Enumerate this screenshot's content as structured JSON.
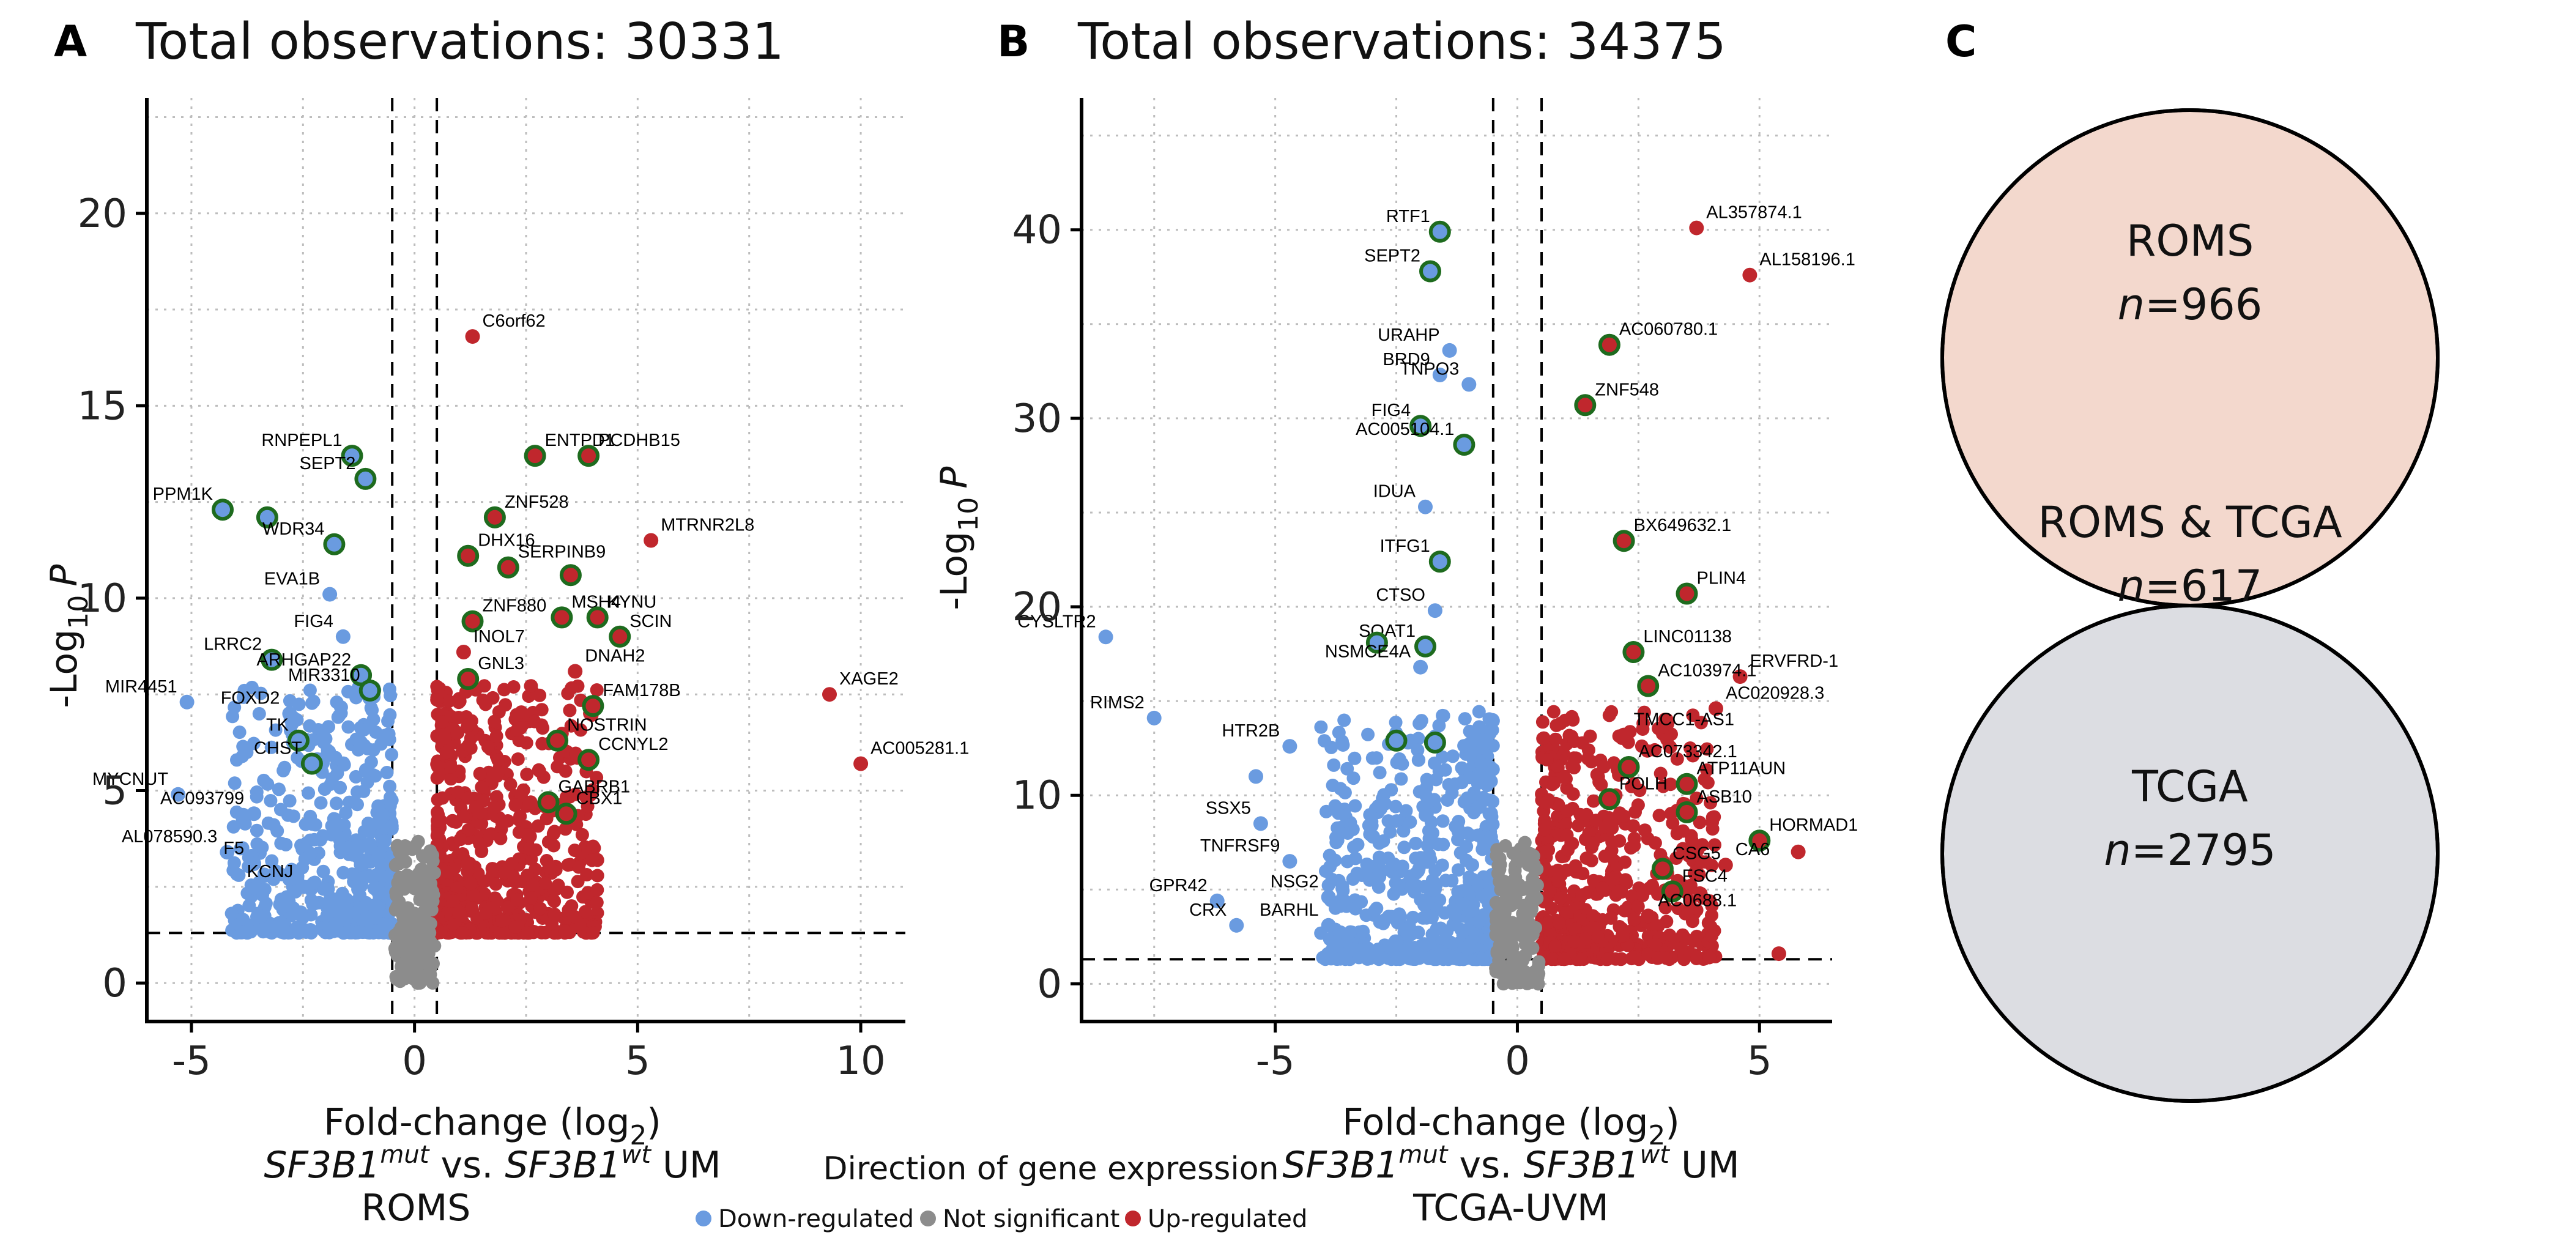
{
  "colors": {
    "down": "#6a9be0",
    "ns": "#8c8c8c",
    "up": "#c0272d",
    "highlight_ring": "#1e6b1e",
    "venn_roms": "#f3d8cd",
    "venn_tcga": "#dcdde2",
    "venn_overlap": "#bfe2b5"
  },
  "panels": {
    "a": {
      "letter": "A"
    },
    "b": {
      "letter": "B"
    },
    "c": {
      "letter": "C"
    }
  },
  "chart_data": [
    {
      "type": "scatter",
      "panel": "A",
      "title": "Total observations: 30331",
      "xlabel_line1": "Fold-change (log",
      "xlabel_sub": "2",
      "xlabel_line1_end": ")",
      "xlabel_line2": {
        "gene1": "SF3B1",
        "sup1": "mut",
        "mid": " vs. ",
        "gene2": "SF3B1",
        "sup2": "wt",
        "end": " UM"
      },
      "xlabel_line3": "ROMS",
      "ylabel": {
        "pre": "-Log",
        "sub": "10",
        "post": "P"
      },
      "xlim": [
        -6,
        11
      ],
      "ylim": [
        -1,
        23
      ],
      "xticks": [
        -5,
        0,
        5,
        10
      ],
      "xtick_labels": [
        "-5",
        "0",
        "5",
        "10"
      ],
      "yticks": [
        0,
        5,
        10,
        15,
        20
      ],
      "ytick_labels": [
        "0",
        "5",
        "10",
        "15",
        "20"
      ],
      "fc_cutoff": 0.5,
      "p_cutoff": 1.3,
      "cluster_seed": 11,
      "cluster": {
        "down": 520,
        "up": 620,
        "ns": 160
      },
      "labeled_points": [
        {
          "x": 1.3,
          "y": 16.8,
          "g": "up",
          "label": "C6orf62",
          "hl": false
        },
        {
          "x": -1.4,
          "y": 13.7,
          "g": "down",
          "label": "RNPEPL1",
          "hl": true
        },
        {
          "x": -1.1,
          "y": 13.1,
          "g": "down",
          "label": "SEPT2",
          "hl": true
        },
        {
          "x": 2.7,
          "y": 13.7,
          "g": "up",
          "label": "ENTPD1",
          "hl": true
        },
        {
          "x": 3.9,
          "y": 13.7,
          "g": "up",
          "label": "PCDHB15",
          "hl": true
        },
        {
          "x": -4.3,
          "y": 12.3,
          "g": "down",
          "label": "PPM1K",
          "hl": true
        },
        {
          "x": -3.3,
          "y": 12.1,
          "g": "down",
          "label": "",
          "hl": true
        },
        {
          "x": 1.8,
          "y": 12.1,
          "g": "up",
          "label": "ZNF528",
          "hl": true
        },
        {
          "x": 5.3,
          "y": 11.5,
          "g": "up",
          "label": "MTRNR2L8",
          "hl": false
        },
        {
          "x": -1.8,
          "y": 11.4,
          "g": "down",
          "label": "WDR34",
          "hl": true
        },
        {
          "x": 1.2,
          "y": 11.1,
          "g": "up",
          "label": "DHX16",
          "hl": true
        },
        {
          "x": 2.1,
          "y": 10.8,
          "g": "up",
          "label": "SERPINB9",
          "hl": true
        },
        {
          "x": 3.5,
          "y": 10.6,
          "g": "up",
          "label": "",
          "hl": true
        },
        {
          "x": -1.9,
          "y": 10.1,
          "g": "down",
          "label": "EVA1B",
          "hl": false
        },
        {
          "x": 1.3,
          "y": 9.4,
          "g": "up",
          "label": "ZNF880",
          "hl": true
        },
        {
          "x": 3.3,
          "y": 9.5,
          "g": "up",
          "label": "MSH4",
          "hl": true
        },
        {
          "x": 4.1,
          "y": 9.5,
          "g": "up",
          "label": "KYNU",
          "hl": true
        },
        {
          "x": -1.6,
          "y": 9.0,
          "g": "down",
          "label": "FIG4",
          "hl": false
        },
        {
          "x": 1.1,
          "y": 8.6,
          "g": "up",
          "label": "INOL7",
          "hl": false
        },
        {
          "x": 4.6,
          "y": 9.0,
          "g": "up",
          "label": "SCIN",
          "hl": true
        },
        {
          "x": -3.2,
          "y": 8.4,
          "g": "down",
          "label": "LRRC2",
          "hl": true
        },
        {
          "x": -1.2,
          "y": 8.0,
          "g": "down",
          "label": "ARHGAP22",
          "hl": true
        },
        {
          "x": 1.2,
          "y": 7.9,
          "g": "up",
          "label": "GNL3",
          "hl": true
        },
        {
          "x": 3.6,
          "y": 8.1,
          "g": "up",
          "label": "DNAH2",
          "hl": false
        },
        {
          "x": -5.1,
          "y": 7.3,
          "g": "down",
          "label": "MIR4451",
          "hl": false
        },
        {
          "x": -1.0,
          "y": 7.6,
          "g": "down",
          "label": "MIR3310",
          "hl": true
        },
        {
          "x": 4.0,
          "y": 7.2,
          "g": "up",
          "label": "FAM178B",
          "hl": true
        },
        {
          "x": -2.8,
          "y": 7.0,
          "g": "down",
          "label": "FOXD2",
          "hl": false
        },
        {
          "x": -2.6,
          "y": 6.3,
          "g": "down",
          "label": "TK",
          "hl": true
        },
        {
          "x": 3.2,
          "y": 6.3,
          "g": "up",
          "label": "NOSTRIN",
          "hl": true
        },
        {
          "x": -2.3,
          "y": 5.7,
          "g": "down",
          "label": "CHST",
          "hl": true
        },
        {
          "x": 3.9,
          "y": 5.8,
          "g": "up",
          "label": "CCNYL2",
          "hl": true
        },
        {
          "x": -5.3,
          "y": 4.9,
          "g": "down",
          "label": "MYCNUT",
          "hl": false
        },
        {
          "x": 3.0,
          "y": 4.7,
          "g": "up",
          "label": "GABRB1",
          "hl": true
        },
        {
          "x": -3.6,
          "y": 4.4,
          "g": "down",
          "label": "AC093799",
          "hl": false
        },
        {
          "x": 3.4,
          "y": 4.4,
          "g": "up",
          "label": "CBX1",
          "hl": true
        },
        {
          "x": -4.2,
          "y": 3.4,
          "g": "down",
          "label": "AL078590.3",
          "hl": false
        },
        {
          "x": -3.6,
          "y": 3.1,
          "g": "down",
          "label": "F5",
          "hl": false
        },
        {
          "x": -2.5,
          "y": 2.5,
          "g": "down",
          "label": "KCNJ",
          "hl": false
        },
        {
          "x": 9.3,
          "y": 7.5,
          "g": "up",
          "label": "XAGE2",
          "hl": false
        },
        {
          "x": 10.0,
          "y": 5.7,
          "g": "up",
          "label": "AC005281.1",
          "hl": false
        }
      ]
    },
    {
      "type": "scatter",
      "panel": "B",
      "title": "Total observations: 34375",
      "xlabel_line1": "Fold-change (log",
      "xlabel_sub": "2",
      "xlabel_line1_end": ")",
      "xlabel_line2": {
        "gene1": "SF3B1",
        "sup1": "mut",
        "mid": " vs. ",
        "gene2": "SF3B1",
        "sup2": "wt",
        "end": " UM"
      },
      "xlabel_line3": "TCGA-UVM",
      "ylabel": {
        "pre": "-Log",
        "sub": "10",
        "post": "P"
      },
      "xlim": [
        -9,
        6.5
      ],
      "ylim": [
        -2,
        47
      ],
      "xticks": [
        -5,
        0,
        5
      ],
      "xtick_labels": [
        "-5",
        "0",
        "5"
      ],
      "yticks": [
        0,
        10,
        20,
        30,
        40
      ],
      "ytick_labels": [
        "0",
        "10",
        "20",
        "30",
        "40"
      ],
      "fc_cutoff": 0.5,
      "p_cutoff": 1.3,
      "cluster_seed": 29,
      "cluster": {
        "down": 620,
        "up": 560,
        "ns": 170
      },
      "labeled_points": [
        {
          "x": -1.6,
          "y": 39.9,
          "g": "down",
          "label": "RTF1",
          "hl": true
        },
        {
          "x": -1.8,
          "y": 37.8,
          "g": "down",
          "label": "SEPT2",
          "hl": true
        },
        {
          "x": 3.7,
          "y": 40.1,
          "g": "up",
          "label": "AL357874.1",
          "hl": false
        },
        {
          "x": 4.8,
          "y": 37.6,
          "g": "up",
          "label": "AL158196.1",
          "hl": false
        },
        {
          "x": -1.4,
          "y": 33.6,
          "g": "down",
          "label": "URAHP",
          "hl": false
        },
        {
          "x": 1.9,
          "y": 33.9,
          "g": "up",
          "label": "AC060780.1",
          "hl": true
        },
        {
          "x": -1.6,
          "y": 32.3,
          "g": "down",
          "label": "BRD9",
          "hl": false
        },
        {
          "x": -1.0,
          "y": 31.8,
          "g": "down",
          "label": "TNPO3",
          "hl": false
        },
        {
          "x": 1.4,
          "y": 30.7,
          "g": "up",
          "label": "ZNF548",
          "hl": true
        },
        {
          "x": -2.0,
          "y": 29.6,
          "g": "down",
          "label": "FIG4",
          "hl": true
        },
        {
          "x": -1.1,
          "y": 28.6,
          "g": "down",
          "label": "AC005104.1",
          "hl": true
        },
        {
          "x": -1.9,
          "y": 25.3,
          "g": "down",
          "label": "IDUA",
          "hl": false
        },
        {
          "x": 2.2,
          "y": 23.5,
          "g": "up",
          "label": "BX649632.1",
          "hl": true
        },
        {
          "x": -1.6,
          "y": 22.4,
          "g": "down",
          "label": "ITFG1",
          "hl": true
        },
        {
          "x": 3.5,
          "y": 20.7,
          "g": "up",
          "label": "PLIN4",
          "hl": true
        },
        {
          "x": -1.7,
          "y": 19.8,
          "g": "down",
          "label": "CTSO",
          "hl": false
        },
        {
          "x": -8.5,
          "y": 18.4,
          "g": "down",
          "label": "CYSLTR2",
          "hl": false
        },
        {
          "x": -1.9,
          "y": 17.9,
          "g": "down",
          "label": "SOAT1",
          "hl": true
        },
        {
          "x": -2.9,
          "y": 18.1,
          "g": "down",
          "label": "",
          "hl": true
        },
        {
          "x": -2.0,
          "y": 16.8,
          "g": "down",
          "label": "NSMCE4A",
          "hl": false
        },
        {
          "x": 2.4,
          "y": 17.6,
          "g": "up",
          "label": "LINC01138",
          "hl": true
        },
        {
          "x": 4.6,
          "y": 16.3,
          "g": "up",
          "label": "ERVFRD-1",
          "hl": false
        },
        {
          "x": 2.7,
          "y": 15.8,
          "g": "up",
          "label": "AC103974.1",
          "hl": true
        },
        {
          "x": 4.1,
          "y": 14.6,
          "g": "up",
          "label": "AC020928.3",
          "hl": false
        },
        {
          "x": -7.5,
          "y": 14.1,
          "g": "down",
          "label": "RIMS2",
          "hl": false
        },
        {
          "x": 2.2,
          "y": 13.2,
          "g": "up",
          "label": "TMCC1-AS1",
          "hl": false
        },
        {
          "x": -4.7,
          "y": 12.6,
          "g": "down",
          "label": "HTR2B",
          "hl": false
        },
        {
          "x": 2.3,
          "y": 11.5,
          "g": "up",
          "label": "AC073342.1",
          "hl": true
        },
        {
          "x": -2.5,
          "y": 12.9,
          "g": "down",
          "label": "",
          "hl": true
        },
        {
          "x": -1.7,
          "y": 12.8,
          "g": "down",
          "label": "",
          "hl": true
        },
        {
          "x": 1.9,
          "y": 9.8,
          "g": "up",
          "label": "POLH",
          "hl": true
        },
        {
          "x": 3.5,
          "y": 10.6,
          "g": "up",
          "label": "ATP11AUN",
          "hl": true
        },
        {
          "x": -5.4,
          "y": 11.0,
          "g": "down",
          "label": "",
          "hl": false
        },
        {
          "x": 3.5,
          "y": 9.1,
          "g": "up",
          "label": "ASB10",
          "hl": true
        },
        {
          "x": -5.3,
          "y": 8.5,
          "g": "down",
          "label": "SSX5",
          "hl": false
        },
        {
          "x": 5.0,
          "y": 7.6,
          "g": "up",
          "label": "HORMAD1",
          "hl": true
        },
        {
          "x": 5.8,
          "y": 7.0,
          "g": "up",
          "label": "",
          "hl": false
        },
        {
          "x": -4.7,
          "y": 6.5,
          "g": "down",
          "label": "TNFRSF9",
          "hl": false
        },
        {
          "x": 3.0,
          "y": 6.1,
          "g": "up",
          "label": "CSG5",
          "hl": true
        },
        {
          "x": 4.3,
          "y": 6.3,
          "g": "up",
          "label": "CA6",
          "hl": false
        },
        {
          "x": -6.2,
          "y": 4.4,
          "g": "down",
          "label": "GPR42",
          "hl": false
        },
        {
          "x": -3.9,
          "y": 4.6,
          "g": "down",
          "label": "NSG2",
          "hl": false
        },
        {
          "x": 3.2,
          "y": 4.9,
          "g": "up",
          "label": "FSC4",
          "hl": true
        },
        {
          "x": -5.8,
          "y": 3.1,
          "g": "down",
          "label": "CRX",
          "hl": false
        },
        {
          "x": -3.9,
          "y": 3.1,
          "g": "down",
          "label": "BARHL",
          "hl": false
        },
        {
          "x": 2.7,
          "y": 3.6,
          "g": "up",
          "label": "AC0688.1",
          "hl": false
        },
        {
          "x": 5.4,
          "y": 1.6,
          "g": "up",
          "label": "",
          "hl": false
        }
      ]
    },
    {
      "type": "venn",
      "panel": "C",
      "sets": [
        {
          "name": "ROMS",
          "n_prefix": "n",
          "n_value": "=966"
        },
        {
          "name": "ROMS & TCGA",
          "n_prefix": "n",
          "n_value": "=617"
        },
        {
          "name": "TCGA",
          "n_prefix": "n",
          "n_value": "=2795"
        }
      ]
    }
  ],
  "legend": {
    "title": "Direction of gene expression",
    "items": [
      {
        "label": "Down-regulated",
        "color_key": "down"
      },
      {
        "label": "Not significant",
        "color_key": "ns"
      },
      {
        "label": "Up-regulated",
        "color_key": "up"
      }
    ]
  }
}
